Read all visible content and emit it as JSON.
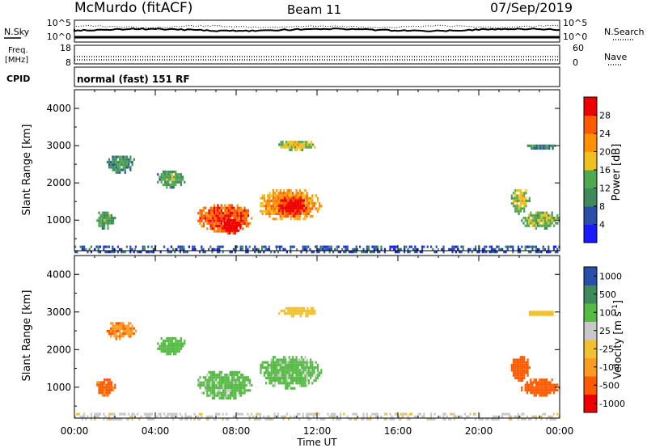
{
  "header": {
    "station": "McMurdo (fitACF)",
    "beam": "Beam 11",
    "date": "07/Sep/2019"
  },
  "noise_panel": {
    "left_label": "N.Sky",
    "right_label": "N.Search",
    "left_ticks": [
      "10^5",
      "10^0"
    ],
    "right_ticks": [
      "10^5",
      "10^0"
    ]
  },
  "freq_panel": {
    "left_label_line1": "Freq.",
    "left_label_line2": "[MHz]",
    "left_ticks": [
      "18",
      "8"
    ],
    "right_label": "Nave",
    "right_ticks": [
      "60",
      "0"
    ]
  },
  "cpid_panel": {
    "label": "CPID",
    "text": "normal (fast) 151 RF"
  },
  "colors": {
    "power": [
      "#1a1aff",
      "#2a4fa8",
      "#3f8a5a",
      "#4faa4f",
      "#f0c020",
      "#ff9000",
      "#ff5a00",
      "#ee0000"
    ],
    "velocity": [
      "#ee0000",
      "#ff5a00",
      "#ff9a20",
      "#f0c030",
      "#c8c8c8",
      "#55bb44",
      "#3f8a5a",
      "#2a4fa8"
    ]
  },
  "chart_data": [
    {
      "type": "heatmap",
      "name": "power",
      "ylabel": "Slant Range [km]",
      "xlabel": "",
      "xlim": [
        "00:00",
        "24:00"
      ],
      "ylim": [
        180,
        4500
      ],
      "yticks": [
        "1000",
        "2000",
        "3000",
        "4000"
      ],
      "xticks": [
        "00:00",
        "04:00",
        "08:00",
        "12:00",
        "16:00",
        "20:00",
        "00:00"
      ],
      "colorbar": {
        "label": "Power [dB]",
        "ticks": [
          "4",
          "8",
          "12",
          "16",
          "20",
          "24",
          "28"
        ],
        "range": [
          0,
          32
        ]
      },
      "regions": [
        {
          "t0": 6.0,
          "t1": 8.8,
          "r0": 700,
          "r1": 1500,
          "value": 24
        },
        {
          "t0": 7.2,
          "t1": 8.2,
          "r0": 650,
          "r1": 1100,
          "value": 30
        },
        {
          "t0": 9.0,
          "t1": 12.2,
          "r0": 1000,
          "r1": 1900,
          "value": 20
        },
        {
          "t0": 10.0,
          "t1": 11.5,
          "r0": 1100,
          "r1": 1700,
          "value": 28
        },
        {
          "t0": 10.0,
          "t1": 12.0,
          "r0": 2900,
          "r1": 3200,
          "value": 14
        },
        {
          "t0": 1.0,
          "t1": 2.0,
          "r0": 800,
          "r1": 1300,
          "value": 10
        },
        {
          "t0": 1.5,
          "t1": 3.0,
          "r0": 2300,
          "r1": 2800,
          "value": 8
        },
        {
          "t0": 4.0,
          "t1": 5.5,
          "r0": 1900,
          "r1": 2400,
          "value": 9
        },
        {
          "t0": 21.5,
          "t1": 22.5,
          "r0": 1200,
          "r1": 1900,
          "value": 14
        },
        {
          "t0": 22.0,
          "t1": 24.0,
          "r0": 800,
          "r1": 1300,
          "value": 12
        },
        {
          "t0": 22.3,
          "t1": 23.8,
          "r0": 2900,
          "r1": 3100,
          "value": 7
        },
        {
          "t0": 0.0,
          "t1": 24.0,
          "r0": 180,
          "r1": 320,
          "value": 6
        }
      ]
    },
    {
      "type": "heatmap",
      "name": "velocity",
      "ylabel": "Slant Range [km]",
      "xlabel": "Time UT",
      "xlim": [
        "00:00",
        "24:00"
      ],
      "ylim": [
        180,
        4500
      ],
      "yticks": [
        "1000",
        "2000",
        "3000",
        "4000"
      ],
      "xticks": [
        "00:00",
        "04:00",
        "08:00",
        "12:00",
        "16:00",
        "20:00",
        "00:00"
      ],
      "colorbar": {
        "label": "Velocity [m s^-1]",
        "ticks": [
          "-1000",
          "-500",
          "-100",
          "-25",
          "25",
          "100",
          "500",
          "1000"
        ]
      },
      "regions": [
        {
          "t0": 6.0,
          "t1": 8.8,
          "r0": 700,
          "r1": 1500,
          "value": 150
        },
        {
          "t0": 9.0,
          "t1": 12.2,
          "r0": 1000,
          "r1": 1900,
          "value": 150
        },
        {
          "t0": 10.0,
          "t1": 12.0,
          "r0": 2900,
          "r1": 3200,
          "value": 0
        },
        {
          "t0": 1.0,
          "t1": 2.0,
          "r0": 800,
          "r1": 1300,
          "value": -150
        },
        {
          "t0": 1.5,
          "t1": 3.0,
          "r0": 2300,
          "r1": 2800,
          "value": -80
        },
        {
          "t0": 4.0,
          "t1": 5.5,
          "r0": 1900,
          "r1": 2400,
          "value": 200
        },
        {
          "t0": 21.5,
          "t1": 22.5,
          "r0": 1200,
          "r1": 1900,
          "value": -300
        },
        {
          "t0": 22.0,
          "t1": 24.0,
          "r0": 800,
          "r1": 1300,
          "value": -300
        },
        {
          "t0": 22.3,
          "t1": 23.8,
          "r0": 2900,
          "r1": 3100,
          "value": 0
        },
        {
          "t0": 0.0,
          "t1": 24.0,
          "r0": 180,
          "r1": 320,
          "value": 50
        }
      ]
    }
  ]
}
